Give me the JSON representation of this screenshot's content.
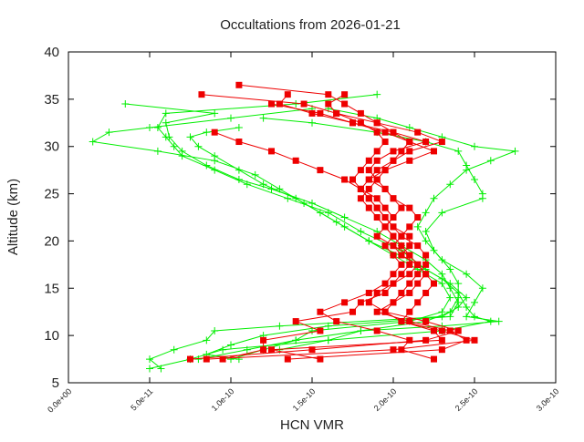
{
  "chart_data": {
    "type": "line",
    "title": "Occultations from 2026-01-21",
    "xlabel": "HCN VMR",
    "ylabel": "Altitude (km)",
    "xlim": [
      0,
      3e-10
    ],
    "ylim": [
      5,
      40
    ],
    "xticks": [
      "0.0e+00",
      "5.0e-11",
      "1.0e-10",
      "1.5e-10",
      "2.0e-10",
      "2.5e-10",
      "3.0e-10"
    ],
    "xtick_values": [
      0,
      5e-11,
      1e-10,
      1.5e-10,
      2e-10,
      2.5e-10,
      3e-10
    ],
    "yticks": [
      "5",
      "10",
      "15",
      "20",
      "25",
      "30",
      "35",
      "40"
    ],
    "ytick_values": [
      5,
      10,
      15,
      20,
      25,
      30,
      35,
      40
    ],
    "grid": false,
    "legend": "none",
    "colors": {
      "green": "#00ee00",
      "red": "#ee0000"
    },
    "series": [
      {
        "color": "green",
        "marker": "plus",
        "alt": [
          34,
          33,
          32,
          31.5,
          30.5,
          29.5,
          28.5,
          27,
          25.5,
          24,
          22,
          20,
          18,
          16,
          14.5,
          13,
          12,
          11.5,
          10.5,
          9.5,
          8.5,
          7.5,
          6.5
        ],
        "x": [
          1.5e-10,
          1e-10,
          5e-11,
          2.5e-11,
          1.5e-11,
          5.5e-11,
          9e-11,
          1.15e-10,
          1.3e-10,
          1.45e-10,
          1.65e-10,
          1.85e-10,
          2.1e-10,
          2.3e-10,
          2.4e-10,
          2.45e-10,
          2.5e-10,
          2.6e-10,
          2.3e-10,
          1.6e-10,
          9.5e-11,
          7.5e-11,
          5e-11
        ]
      },
      {
        "color": "green",
        "marker": "plus",
        "alt": [
          35.5,
          34.5,
          33.5,
          32,
          31,
          30,
          29,
          27.5,
          26,
          24.5,
          23,
          21,
          19,
          17,
          15.5,
          14,
          13,
          12,
          11,
          10.5,
          9.5,
          8.5,
          7.5,
          6.5
        ],
        "x": [
          1.9e-10,
          1.4e-10,
          6e-11,
          5.5e-11,
          6e-11,
          6.5e-11,
          7e-11,
          9e-11,
          1.1e-10,
          1.35e-10,
          1.6e-10,
          1.8e-10,
          2.05e-10,
          2.2e-10,
          2.35e-10,
          2.45e-10,
          2.4e-10,
          2.3e-10,
          1.3e-10,
          9e-11,
          8.5e-11,
          6.5e-11,
          5e-11,
          5.7e-11
        ]
      },
      {
        "color": "green",
        "marker": "plus",
        "alt": [
          34,
          33,
          32,
          31,
          30,
          29.5,
          28.5,
          27.5,
          26,
          24.5,
          23,
          21.5,
          20,
          18,
          16.5,
          15,
          13.5,
          12,
          11.5,
          11,
          10.5,
          9.5,
          8.5,
          7.5
        ],
        "x": [
          1.6e-10,
          1.9e-10,
          2.1e-10,
          2.3e-10,
          2.5e-10,
          2.75e-10,
          2.6e-10,
          2.45e-10,
          2.35e-10,
          2.25e-10,
          2.2e-10,
          2.15e-10,
          2.2e-10,
          2.3e-10,
          2.45e-10,
          2.55e-10,
          2.5e-10,
          2.45e-10,
          2.65e-10,
          2.3e-10,
          1.8e-10,
          1.4e-10,
          1.1e-10,
          8e-11
        ]
      },
      {
        "color": "green",
        "marker": "plus",
        "alt": [
          34.5,
          33.5,
          32.5,
          31,
          29.5,
          28,
          26.5,
          25.5,
          24,
          22.5,
          21,
          19.5,
          18,
          16.5,
          15,
          13.5,
          12,
          11,
          10,
          9,
          8,
          7.5
        ],
        "x": [
          3.5e-11,
          9e-11,
          6e-11,
          6.2e-11,
          7e-11,
          8.5e-11,
          1.05e-10,
          1.25e-10,
          1.5e-10,
          1.7e-10,
          1.9e-10,
          2.05e-10,
          2.2e-10,
          2.3e-10,
          2.35e-10,
          2.4e-10,
          2.35e-10,
          1.6e-10,
          1.2e-10,
          1e-10,
          8.5e-11,
          1.05e-10
        ]
      },
      {
        "color": "green",
        "marker": "plus",
        "alt": [
          33,
          32.5,
          31.5,
          30.5,
          29.5,
          28,
          26.5,
          25,
          24.5,
          23,
          21,
          19,
          17,
          15.5,
          14,
          12.5,
          11.5,
          10.5,
          9.5,
          8.5
        ],
        "x": [
          1.2e-10,
          1.5e-10,
          1.9e-10,
          2.2e-10,
          2.4e-10,
          2.45e-10,
          2.5e-10,
          2.55e-10,
          2.55e-10,
          2.3e-10,
          2.2e-10,
          2.25e-10,
          2.35e-10,
          2.4e-10,
          2.4e-10,
          2.35e-10,
          2.2e-10,
          1.8e-10,
          1.6e-10,
          1.3e-10
        ]
      },
      {
        "color": "green",
        "marker": "plus",
        "alt": [
          32,
          31.5,
          31,
          30,
          29,
          27.5,
          26,
          24.5,
          23,
          21.5,
          20,
          18.5,
          17,
          15.5,
          14,
          12.5,
          11.5,
          10.5,
          9.5,
          8.5,
          7.5
        ],
        "x": [
          1.05e-10,
          8.5e-11,
          7.5e-11,
          8e-11,
          9e-11,
          1.05e-10,
          1.2e-10,
          1.4e-10,
          1.55e-10,
          1.7e-10,
          1.85e-10,
          2e-10,
          2.15e-10,
          2.3e-10,
          2.35e-10,
          2.3e-10,
          2.1e-10,
          1.5e-10,
          1.4e-10,
          1.2e-10,
          1e-10
        ]
      },
      {
        "color": "red",
        "marker": "square",
        "alt": [
          36.5,
          35.5,
          34.5,
          33.5,
          32.5,
          31.5,
          30.5,
          29.5,
          28.5,
          27.5,
          26.5,
          25.5,
          24.5,
          23.5,
          22.5,
          21.5,
          20.5,
          19.5,
          18.5,
          17.5,
          16.5,
          15.5,
          14.5,
          13.5,
          12.5,
          11.5,
          10.5,
          9.5,
          8.5,
          7.5
        ],
        "x": [
          1.05e-10,
          1.6e-10,
          1.7e-10,
          1.8e-10,
          1.9e-10,
          2e-10,
          2.1e-10,
          2.05e-10,
          2e-10,
          1.95e-10,
          1.9e-10,
          1.95e-10,
          2e-10,
          2.05e-10,
          2e-10,
          1.95e-10,
          2e-10,
          2.05e-10,
          2.1e-10,
          2.1e-10,
          2.05e-10,
          2e-10,
          1.9e-10,
          1.85e-10,
          1.95e-10,
          2.2e-10,
          2.4e-10,
          2.2e-10,
          1.5e-10,
          7.5e-11
        ]
      },
      {
        "color": "red",
        "marker": "square",
        "alt": [
          35.5,
          34.5,
          33.5,
          32.5,
          31.5,
          30.5,
          29.5,
          28.5,
          27.5,
          26.5,
          25.5,
          24.5,
          23.5,
          22.5,
          21.5,
          20.5,
          19.5,
          18.5,
          17.5,
          16.5,
          15.5,
          14.5,
          13.5,
          12.5,
          11.5,
          10.5,
          9.5,
          8.5,
          7.5
        ],
        "x": [
          8.2e-11,
          1.45e-10,
          1.65e-10,
          1.8e-10,
          1.9e-10,
          1.95e-10,
          1.9e-10,
          1.85e-10,
          1.8e-10,
          1.75e-10,
          1.8e-10,
          1.85e-10,
          1.9e-10,
          1.95e-10,
          2e-10,
          2.05e-10,
          2e-10,
          2.1e-10,
          2.15e-10,
          2.2e-10,
          2.15e-10,
          2.1e-10,
          2e-10,
          1.95e-10,
          2.05e-10,
          2.3e-10,
          2.5e-10,
          2e-10,
          8.5e-11
        ]
      },
      {
        "color": "red",
        "marker": "square",
        "alt": [
          35.5,
          34.5,
          33.5,
          32.5,
          31.5,
          30.5,
          29.5,
          28.5,
          27.5,
          26.5,
          25.5,
          24.5,
          23.5,
          22.5,
          21.5,
          20.5,
          19.5,
          18.5,
          17.5,
          16.5,
          15.5,
          14.5,
          13.5,
          12.5,
          11.5,
          10.5,
          9.5,
          8.5,
          7.5
        ],
        "x": [
          1.7e-10,
          1.6e-10,
          1.65e-10,
          1.9e-10,
          2.15e-10,
          2.3e-10,
          2.1e-10,
          2e-10,
          1.9e-10,
          1.85e-10,
          1.95e-10,
          2e-10,
          2.1e-10,
          2.15e-10,
          2.1e-10,
          2.05e-10,
          2.15e-10,
          2.2e-10,
          2.2e-10,
          2.15e-10,
          2.1e-10,
          2.05e-10,
          2e-10,
          1.9e-10,
          2.1e-10,
          2.35e-10,
          2.45e-10,
          2.3e-10,
          1.35e-10
        ]
      },
      {
        "color": "red",
        "marker": "square",
        "alt": [
          31.5,
          30.5,
          29.5,
          28.5,
          27.5,
          26.5,
          25.5,
          24.5,
          23.5,
          22.5,
          21.5,
          20.5,
          19.5,
          18.5,
          17.5,
          16.5,
          15.5,
          14.5,
          13.5,
          12.5,
          11.5,
          10.5,
          9.5,
          8.5,
          7.5
        ],
        "x": [
          9e-11,
          1.05e-10,
          1.25e-10,
          1.4e-10,
          1.55e-10,
          1.7e-10,
          1.8e-10,
          1.9e-10,
          1.95e-10,
          2e-10,
          1.95e-10,
          1.9e-10,
          2e-10,
          2.05e-10,
          2.15e-10,
          2.1e-10,
          2e-10,
          1.95e-10,
          1.8e-10,
          1.75e-10,
          1.4e-10,
          1.55e-10,
          1.2e-10,
          1.2e-10,
          9.5e-11
        ]
      },
      {
        "color": "red",
        "marker": "square",
        "alt": [
          35.5,
          34.5,
          33.5,
          32.5,
          31.5,
          30.5,
          29.5,
          28.5,
          27.5,
          26.5,
          25.5,
          24.5,
          23.5,
          22.5,
          21.5,
          20.5,
          19.5,
          18.5,
          17.5,
          16.5,
          15.5,
          14.5,
          13.5,
          12.5,
          11.5,
          10.5,
          9.5,
          8.5,
          7.5
        ],
        "x": [
          1.35e-10,
          1.3e-10,
          1.5e-10,
          1.75e-10,
          2e-10,
          2.2e-10,
          2e-10,
          1.9e-10,
          1.85e-10,
          1.9e-10,
          1.85e-10,
          1.8e-10,
          1.85e-10,
          1.9e-10,
          1.95e-10,
          2e-10,
          1.95e-10,
          2e-10,
          2.05e-10,
          2e-10,
          1.95e-10,
          1.85e-10,
          1.7e-10,
          1.55e-10,
          1.65e-10,
          1.9e-10,
          2.1e-10,
          2.05e-10,
          2.25e-10
        ]
      },
      {
        "color": "red",
        "marker": "square",
        "alt": [
          34.5,
          33.5,
          32.5,
          31.5,
          30.5,
          29.5,
          28.5,
          27.5,
          26.5,
          25.5,
          24.5,
          23.5,
          22.5,
          21.5,
          20.5,
          19.5,
          18.5,
          17.5,
          16.5,
          15.5,
          14.5,
          13.5,
          12.5,
          11.5,
          10.5,
          9.5,
          8.5,
          7.5
        ],
        "x": [
          1.25e-10,
          1.55e-10,
          1.75e-10,
          1.95e-10,
          2.1e-10,
          2.25e-10,
          2.1e-10,
          1.95e-10,
          1.85e-10,
          1.8e-10,
          1.85e-10,
          1.9e-10,
          1.95e-10,
          2e-10,
          2.1e-10,
          2.1e-10,
          2.05e-10,
          2.15e-10,
          2.2e-10,
          2.25e-10,
          2.2e-10,
          2.15e-10,
          2.1e-10,
          2.05e-10,
          2.25e-10,
          2.3e-10,
          1.25e-10,
          1.55e-10
        ]
      }
    ]
  }
}
